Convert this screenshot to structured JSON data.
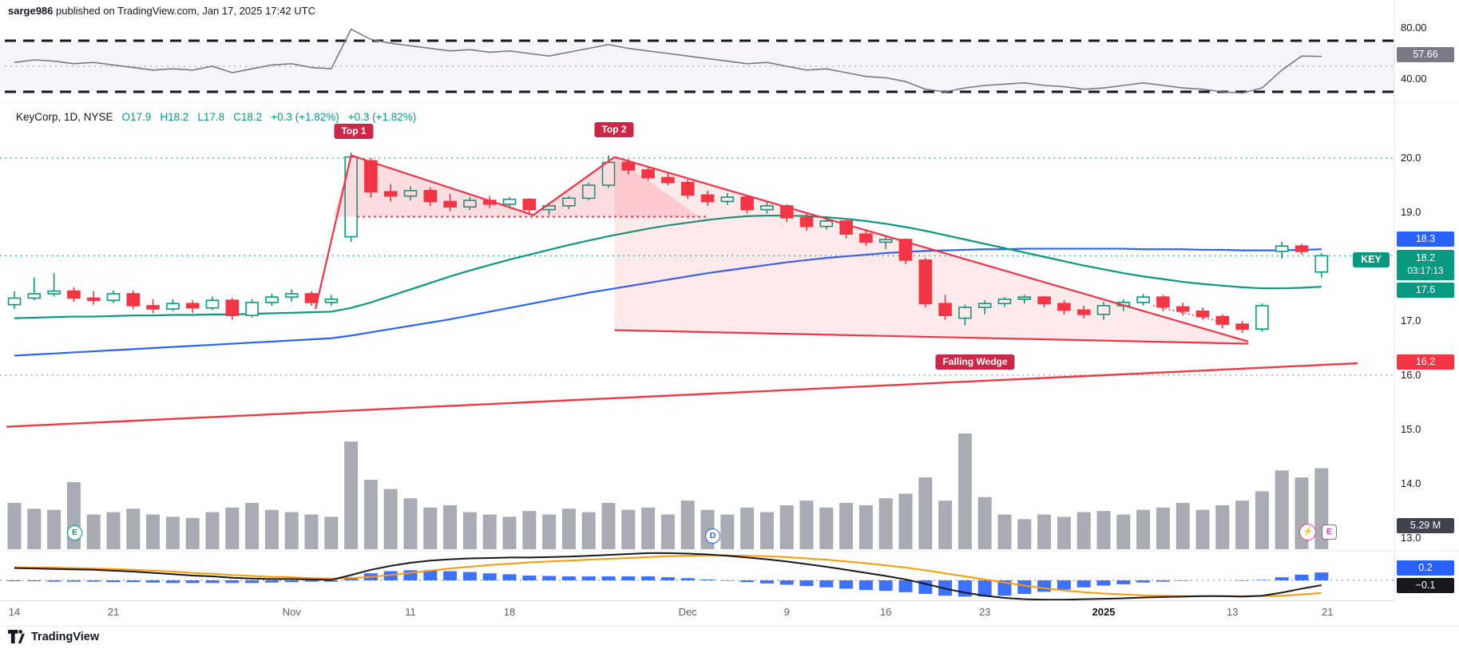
{
  "header": {
    "username": "sarge986",
    "published": " published on TradingView.com, Jan 17, 2025 17:42 UTC"
  },
  "legend": {
    "title": "KeyCorp, 1D, NYSE",
    "o": "O17.9",
    "h": "H18.2",
    "l": "L17.8",
    "c": "C18.2",
    "change": "+0.3 (+1.82%)",
    "change_ext": "+0.3 (+1.82%)"
  },
  "annotations": {
    "top1": "Top 1",
    "top2": "Top 2",
    "wedge": "Falling Wedge"
  },
  "axis_right": {
    "rsi_upper": "80.00",
    "rsi_value": "57.66",
    "rsi_lower": "40.00",
    "p20": "20.0",
    "p19": "19.0",
    "ma_blue": "18.3",
    "symbol": "KEY",
    "last_price": "18.2",
    "countdown": "03:17:13",
    "ma_green": "17.6",
    "p17": "17.0",
    "ma_red": "16.2",
    "p16": "16.0",
    "p15": "15.0",
    "p14": "14.0",
    "p13": "13.0",
    "volume": "5.29 M",
    "macd_hist": "0.2",
    "macd_main": "−0.1"
  },
  "markers": {
    "earnings": {
      "label": "E",
      "color": "#089981"
    },
    "dividend": {
      "label": "D",
      "color": "#2962ff"
    },
    "flash": {
      "icon": "⚡",
      "color": "#e83a9c"
    },
    "earnings_upcoming": {
      "label": "E",
      "color": "#cf3ad4"
    }
  },
  "footer": {
    "brand": "TradingView"
  },
  "colors": {
    "up": "#089981",
    "down": "#f23645",
    "blue": "#2962ff",
    "orange": "#ff9800",
    "black_line": "#16181e",
    "rsi_line": "#787b86",
    "volume_bar": "#a8abb4",
    "gray_badge": "#787b86",
    "dark_badge": "#40434e",
    "black_badge": "#16181e",
    "flag": "#cb2746",
    "pattern": "#f23347",
    "magenta": "#e83a9c",
    "purple": "#cf3ad4",
    "key_tag": "#089981"
  },
  "chart_data": {
    "type": "candlestick+indicators",
    "symbol": "KeyCorp",
    "interval": "1D",
    "exchange": "NYSE",
    "title": "KeyCorp, 1D, NYSE",
    "y_axis": {
      "price_labels": [
        "20.0",
        "19.0",
        "17.0",
        "16.0",
        "15.0",
        "14.0",
        "13.0"
      ],
      "rsi_labels": [
        "80.00",
        "40.00"
      ]
    },
    "x_axis": {
      "ticks": [
        {
          "label": "14",
          "i": 0
        },
        {
          "label": "21",
          "i": 5
        },
        {
          "label": "Nov",
          "i": 14
        },
        {
          "label": "11",
          "i": 20
        },
        {
          "label": "18",
          "i": 25
        },
        {
          "label": "Dec",
          "i": 34
        },
        {
          "label": "9",
          "i": 39
        },
        {
          "label": "16",
          "i": 44
        },
        {
          "label": "23",
          "i": 49
        },
        {
          "label": "2025",
          "i": 55,
          "major": true
        },
        {
          "label": "13",
          "i": 61.5
        },
        {
          "label": "21",
          "i": 66.3
        }
      ]
    },
    "candles": {
      "ohlc": [
        [
          17.3,
          17.55,
          17.22,
          17.42
        ],
        [
          17.42,
          17.8,
          17.38,
          17.5
        ],
        [
          17.5,
          17.88,
          17.45,
          17.55
        ],
        [
          17.55,
          17.62,
          17.35,
          17.42
        ],
        [
          17.42,
          17.55,
          17.3,
          17.38
        ],
        [
          17.38,
          17.56,
          17.33,
          17.5
        ],
        [
          17.5,
          17.56,
          17.22,
          17.28
        ],
        [
          17.28,
          17.4,
          17.14,
          17.22
        ],
        [
          17.22,
          17.4,
          17.18,
          17.32
        ],
        [
          17.32,
          17.38,
          17.15,
          17.24
        ],
        [
          17.24,
          17.45,
          17.2,
          17.38
        ],
        [
          17.38,
          17.42,
          17.02,
          17.1
        ],
        [
          17.1,
          17.4,
          17.06,
          17.34
        ],
        [
          17.34,
          17.5,
          17.28,
          17.44
        ],
        [
          17.44,
          17.58,
          17.36,
          17.5
        ],
        [
          17.5,
          17.55,
          17.28,
          17.34
        ],
        [
          17.34,
          17.48,
          17.28,
          17.4
        ],
        [
          18.55,
          20.1,
          18.45,
          20.02
        ],
        [
          19.95,
          20.0,
          19.28,
          19.38
        ],
        [
          19.38,
          19.52,
          19.2,
          19.3
        ],
        [
          19.3,
          19.48,
          19.22,
          19.4
        ],
        [
          19.4,
          19.46,
          19.12,
          19.2
        ],
        [
          19.2,
          19.34,
          19.02,
          19.1
        ],
        [
          19.1,
          19.28,
          19.04,
          19.22
        ],
        [
          19.22,
          19.3,
          19.08,
          19.15
        ],
        [
          19.15,
          19.28,
          19.1,
          19.24
        ],
        [
          19.24,
          19.26,
          18.96,
          19.05
        ],
        [
          19.05,
          19.18,
          18.95,
          19.12
        ],
        [
          19.12,
          19.3,
          19.06,
          19.26
        ],
        [
          19.26,
          19.55,
          19.22,
          19.5
        ],
        [
          19.5,
          20.05,
          19.45,
          19.92
        ],
        [
          19.92,
          19.98,
          19.7,
          19.78
        ],
        [
          19.78,
          19.85,
          19.58,
          19.64
        ],
        [
          19.64,
          19.72,
          19.5,
          19.55
        ],
        [
          19.55,
          19.6,
          19.25,
          19.32
        ],
        [
          19.32,
          19.4,
          19.12,
          19.2
        ],
        [
          19.2,
          19.35,
          19.14,
          19.28
        ],
        [
          19.28,
          19.3,
          18.98,
          19.05
        ],
        [
          19.05,
          19.2,
          18.98,
          19.12
        ],
        [
          19.12,
          19.15,
          18.82,
          18.9
        ],
        [
          18.9,
          18.98,
          18.66,
          18.74
        ],
        [
          18.74,
          18.9,
          18.68,
          18.84
        ],
        [
          18.84,
          18.88,
          18.52,
          18.6
        ],
        [
          18.6,
          18.66,
          18.38,
          18.45
        ],
        [
          18.45,
          18.55,
          18.32,
          18.5
        ],
        [
          18.5,
          18.52,
          18.05,
          18.12
        ],
        [
          18.12,
          18.16,
          17.25,
          17.32
        ],
        [
          17.32,
          17.48,
          17.02,
          17.1
        ],
        [
          17.05,
          17.3,
          16.92,
          17.25
        ],
        [
          17.25,
          17.38,
          17.12,
          17.32
        ],
        [
          17.32,
          17.44,
          17.26,
          17.4
        ],
        [
          17.4,
          17.48,
          17.32,
          17.44
        ],
        [
          17.44,
          17.46,
          17.25,
          17.32
        ],
        [
          17.32,
          17.38,
          17.12,
          17.2
        ],
        [
          17.2,
          17.28,
          17.05,
          17.12
        ],
        [
          17.12,
          17.35,
          17.02,
          17.28
        ],
        [
          17.28,
          17.4,
          17.18,
          17.34
        ],
        [
          17.34,
          17.5,
          17.28,
          17.44
        ],
        [
          17.44,
          17.48,
          17.18,
          17.26
        ],
        [
          17.26,
          17.34,
          17.1,
          17.18
        ],
        [
          17.18,
          17.25,
          17.02,
          17.08
        ],
        [
          17.08,
          17.12,
          16.86,
          16.94
        ],
        [
          16.94,
          17.0,
          16.78,
          16.85
        ],
        [
          16.85,
          17.32,
          16.8,
          17.28
        ],
        [
          18.28,
          18.46,
          18.15,
          18.38
        ],
        [
          18.38,
          18.42,
          18.22,
          18.28
        ],
        [
          17.9,
          18.25,
          17.8,
          18.2
        ]
      ]
    },
    "volume": {
      "current_display": "5.29 M",
      "bars_relative": [
        0.4,
        0.35,
        0.34,
        0.58,
        0.3,
        0.32,
        0.35,
        0.3,
        0.28,
        0.27,
        0.32,
        0.36,
        0.4,
        0.34,
        0.32,
        0.3,
        0.28,
        0.93,
        0.6,
        0.52,
        0.44,
        0.36,
        0.38,
        0.32,
        0.3,
        0.28,
        0.33,
        0.3,
        0.35,
        0.32,
        0.4,
        0.34,
        0.36,
        0.3,
        0.42,
        0.34,
        0.3,
        0.36,
        0.32,
        0.38,
        0.42,
        0.36,
        0.4,
        0.38,
        0.44,
        0.48,
        0.62,
        0.42,
        1.0,
        0.45,
        0.3,
        0.26,
        0.3,
        0.28,
        0.32,
        0.33,
        0.3,
        0.34,
        0.36,
        0.4,
        0.34,
        0.38,
        0.42,
        0.5,
        0.68,
        0.62,
        0.7
      ]
    },
    "rsi": {
      "upper_band": 70,
      "lower_band": 30,
      "mid": 50,
      "current": 57.66,
      "values": [
        53,
        55,
        54,
        52,
        53,
        51,
        49,
        47,
        48,
        47,
        50,
        45,
        48,
        51,
        52,
        49,
        48,
        79,
        71,
        68,
        66,
        64,
        62,
        63,
        61,
        62,
        60,
        58,
        61,
        64,
        67,
        64,
        62,
        60,
        58,
        56,
        54,
        52,
        53,
        50,
        47,
        48,
        45,
        42,
        41,
        38,
        32,
        30,
        33,
        35,
        36,
        37,
        35,
        34,
        32,
        33,
        35,
        37,
        35,
        33,
        32,
        30,
        29,
        33,
        47,
        58,
        57.7
      ]
    },
    "ma": {
      "green_current": 17.6,
      "blue_current": 18.3,
      "red_current": 16.2,
      "green": [
        17.05,
        17.06,
        17.07,
        17.08,
        17.08,
        17.09,
        17.1,
        17.1,
        17.11,
        17.11,
        17.12,
        17.12,
        17.13,
        17.14,
        17.15,
        17.16,
        17.17,
        17.24,
        17.34,
        17.46,
        17.58,
        17.7,
        17.82,
        17.93,
        18.03,
        18.13,
        18.22,
        18.31,
        18.4,
        18.48,
        18.56,
        18.63,
        18.7,
        18.76,
        18.81,
        18.86,
        18.9,
        18.93,
        18.94,
        18.94,
        18.93,
        18.91,
        18.88,
        18.84,
        18.79,
        18.73,
        18.66,
        18.58,
        18.5,
        18.42,
        18.34,
        18.26,
        18.18,
        18.1,
        18.02,
        17.95,
        17.88,
        17.82,
        17.77,
        17.72,
        17.68,
        17.65,
        17.62,
        17.6,
        17.6,
        17.61,
        17.63
      ],
      "blue": [
        16.36,
        16.38,
        16.4,
        16.42,
        16.44,
        16.46,
        16.48,
        16.5,
        16.52,
        16.54,
        16.56,
        16.58,
        16.6,
        16.62,
        16.64,
        16.66,
        16.68,
        16.73,
        16.79,
        16.85,
        16.91,
        16.97,
        17.03,
        17.1,
        17.17,
        17.24,
        17.31,
        17.38,
        17.45,
        17.52,
        17.58,
        17.64,
        17.7,
        17.76,
        17.82,
        17.88,
        17.93,
        17.98,
        18.03,
        18.08,
        18.12,
        18.16,
        18.19,
        18.22,
        18.25,
        18.27,
        18.29,
        18.3,
        18.31,
        18.32,
        18.32,
        18.33,
        18.33,
        18.33,
        18.33,
        18.33,
        18.33,
        18.32,
        18.32,
        18.32,
        18.31,
        18.31,
        18.3,
        18.3,
        18.3,
        18.31,
        18.32
      ],
      "red_trend": {
        "start": 15.05,
        "end": 16.22
      }
    },
    "macd": {
      "current_histogram": 0.2,
      "current_line": -0.1,
      "line": [
        0.28,
        0.27,
        0.26,
        0.25,
        0.24,
        0.22,
        0.2,
        0.17,
        0.14,
        0.11,
        0.09,
        0.06,
        0.04,
        0.03,
        0.03,
        0.02,
        0.01,
        0.12,
        0.24,
        0.33,
        0.4,
        0.45,
        0.48,
        0.5,
        0.51,
        0.52,
        0.52,
        0.53,
        0.54,
        0.56,
        0.58,
        0.6,
        0.62,
        0.62,
        0.61,
        0.59,
        0.56,
        0.52,
        0.48,
        0.43,
        0.37,
        0.31,
        0.24,
        0.17,
        0.1,
        0.02,
        -0.08,
        -0.19,
        -0.28,
        -0.35,
        -0.4,
        -0.43,
        -0.44,
        -0.44,
        -0.43,
        -0.42,
        -0.41,
        -0.39,
        -0.38,
        -0.37,
        -0.36,
        -0.36,
        -0.37,
        -0.35,
        -0.28,
        -0.19,
        -0.11
      ],
      "signal": [
        0.3,
        0.29,
        0.29,
        0.28,
        0.27,
        0.26,
        0.24,
        0.22,
        0.2,
        0.17,
        0.15,
        0.12,
        0.1,
        0.08,
        0.07,
        0.05,
        0.04,
        0.05,
        0.08,
        0.12,
        0.17,
        0.22,
        0.27,
        0.31,
        0.35,
        0.38,
        0.41,
        0.43,
        0.45,
        0.47,
        0.49,
        0.51,
        0.53,
        0.55,
        0.56,
        0.57,
        0.57,
        0.56,
        0.55,
        0.53,
        0.5,
        0.47,
        0.43,
        0.39,
        0.34,
        0.29,
        0.23,
        0.16,
        0.09,
        0.02,
        -0.05,
        -0.12,
        -0.18,
        -0.23,
        -0.27,
        -0.3,
        -0.32,
        -0.34,
        -0.35,
        -0.36,
        -0.36,
        -0.36,
        -0.36,
        -0.36,
        -0.35,
        -0.32,
        -0.29
      ]
    },
    "levels": [
      {
        "price": 20.0,
        "color": "#089981",
        "opacity": 0.85
      },
      {
        "price": 18.2,
        "color": "#089981",
        "opacity": 0.9
      },
      {
        "price": 16.0,
        "color": "#787b86",
        "opacity": 0.75
      }
    ],
    "patterns": {
      "color": "#f23347",
      "fill_strong": "rgba(242,51,71,0.17)",
      "fill_soft": "rgba(242,51,71,0.11)",
      "double_top": {
        "rise": [
          [
            15.2,
            17.22
          ],
          [
            17,
            20.05
          ]
        ],
        "outline": [
          [
            17,
            20.05
          ],
          [
            26.2,
            18.95
          ],
          [
            30.3,
            20.02
          ]
        ],
        "neckline": {
          "from": [
            17.3,
            18.92
          ],
          "to": [
            35,
            18.92
          ]
        },
        "fill": [
          [
            16.1,
            18.92
          ],
          [
            17,
            20.05
          ],
          [
            26.2,
            18.95
          ],
          [
            30.3,
            20.02
          ],
          [
            34.6,
            18.92
          ]
        ]
      },
      "wedge": {
        "upper": [
          [
            30.3,
            20.02
          ],
          [
            62.3,
            16.62
          ]
        ],
        "lower": [
          [
            30.3,
            16.83
          ],
          [
            62.3,
            16.58
          ]
        ],
        "inner_dotted": [
          [
            57.5,
            17.28
          ],
          [
            61,
            16.98
          ]
        ],
        "fill": [
          [
            30.3,
            20.02
          ],
          [
            62.3,
            16.62
          ],
          [
            62.3,
            16.58
          ],
          [
            30.3,
            16.83
          ]
        ]
      }
    }
  }
}
